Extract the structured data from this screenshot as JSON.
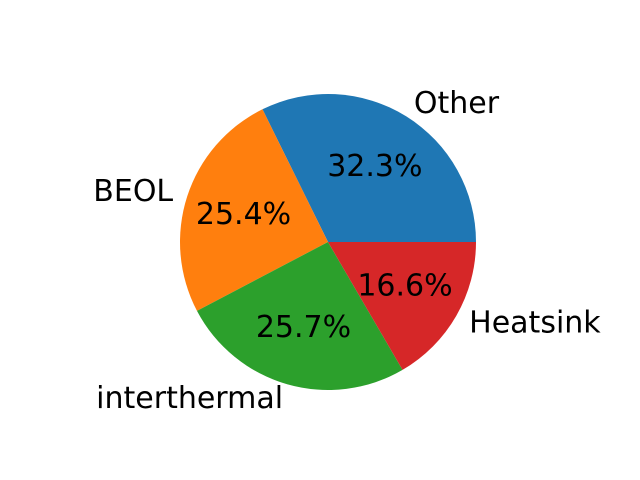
{
  "chart_data": {
    "type": "pie",
    "title": "",
    "start_angle_deg": 0,
    "direction": "counterclockwise",
    "legend": "none",
    "slices": [
      {
        "label": "Other",
        "value": 32.3,
        "pct_label": "32.3%",
        "color": "#1f77b4"
      },
      {
        "label": "BEOL",
        "value": 25.4,
        "pct_label": "25.4%",
        "color": "#ff7f0e"
      },
      {
        "label": "interthermal",
        "value": 25.7,
        "pct_label": "25.7%",
        "color": "#2ca02c"
      },
      {
        "label": "Heatsink",
        "value": 16.6,
        "pct_label": "16.6%",
        "color": "#d62728"
      }
    ]
  }
}
